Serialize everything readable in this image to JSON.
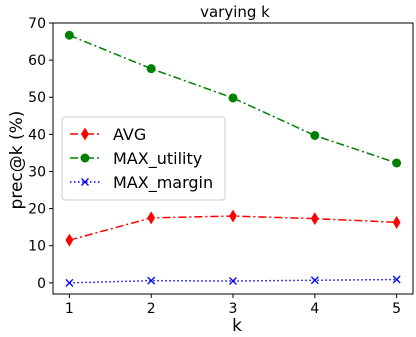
{
  "chart_data": {
    "type": "line",
    "title": "varying k",
    "xlabel": "k",
    "ylabel": "prec@k (%)",
    "x": [
      1,
      2,
      3,
      4,
      5
    ],
    "xlim": [
      0.8,
      5.2
    ],
    "ylim": [
      -3,
      70
    ],
    "xticks": [
      1,
      2,
      3,
      4,
      5
    ],
    "yticks": [
      0,
      10,
      20,
      30,
      40,
      50,
      60,
      70
    ],
    "grid": false,
    "legend_position": "center-left",
    "series": [
      {
        "name": "AVG",
        "values": [
          11.5,
          17.5,
          18.0,
          17.3,
          16.3
        ],
        "color": "#ff0000",
        "marker": "thin-diamond",
        "linestyle": "dash-dot"
      },
      {
        "name": "MAX_utility",
        "values": [
          66.7,
          57.7,
          49.8,
          39.7,
          32.3
        ],
        "color": "#008000",
        "marker": "circle",
        "linestyle": "dash-dot"
      },
      {
        "name": "MAX_margin",
        "values": [
          0.0,
          0.6,
          0.5,
          0.7,
          0.9
        ],
        "color": "#0000ff",
        "marker": "x",
        "linestyle": "dotted"
      }
    ]
  }
}
